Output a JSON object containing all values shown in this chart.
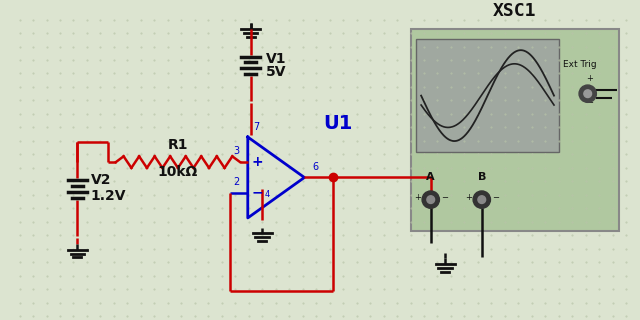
{
  "bg_color": "#dce4d0",
  "dot_color": "#b8c4a8",
  "red": "#cc0000",
  "blue": "#0000cc",
  "dark": "#111111",
  "green_bg": "#b0c8a0",
  "scope_screen_bg": "#a0a8a0",
  "title": "XSC1",
  "v1_label": "V1",
  "v1_val": "5V",
  "v2_label": "V2",
  "v2_val": "1.2V",
  "r1_label": "R1",
  "r1_val": "10kΩ",
  "u1_label": "U1"
}
